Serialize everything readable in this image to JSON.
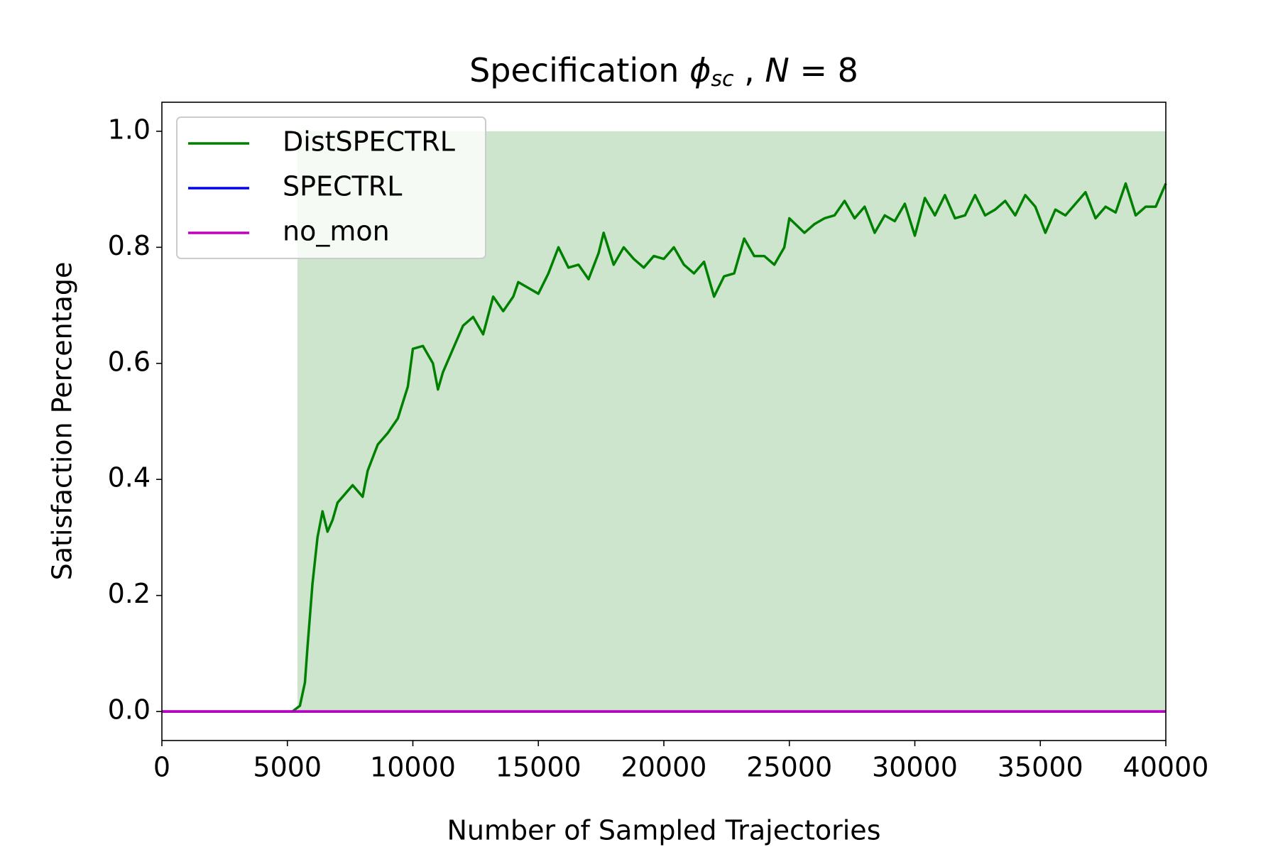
{
  "chart_data": {
    "type": "line",
    "title_parts": [
      "Specification ",
      "ϕ",
      "sc",
      " , ",
      "N",
      " = 8"
    ],
    "x_label": "Number of Sampled Trajectories",
    "y_label": "Satisfaction Percentage",
    "xlim": [
      0,
      40000
    ],
    "xticks": [
      0,
      5000,
      10000,
      15000,
      20000,
      25000,
      30000,
      35000,
      40000
    ],
    "ylim": [
      -0.05,
      1.05
    ],
    "yticks": [
      {
        "value": 0,
        "label": "0.0"
      },
      0.2,
      0.4,
      0.6,
      0.8,
      {
        "value": 1,
        "label": "1.0"
      }
    ],
    "legend": "upper left",
    "band": {
      "color": "#cde5cd",
      "x": [
        5400,
        40000
      ],
      "lower": [
        0,
        0
      ],
      "upper": [
        1,
        1
      ]
    },
    "series": [
      {
        "name": "DistSPECTRL",
        "color": "#008000",
        "x": [
          0,
          5200,
          5500,
          5700,
          5800,
          6000,
          6200,
          6400,
          6600,
          6800,
          7000,
          7400,
          7600,
          8000,
          8200,
          8600,
          9000,
          9400,
          9800,
          10000,
          10400,
          10800,
          11000,
          11200,
          11600,
          12000,
          12400,
          12800,
          13200,
          13600,
          14000,
          14200,
          14600,
          15000,
          15400,
          15800,
          16200,
          16600,
          17000,
          17400,
          17600,
          18000,
          18400,
          18800,
          19200,
          19600,
          20000,
          20400,
          20800,
          21200,
          21600,
          22000,
          22400,
          22800,
          23200,
          23600,
          24000,
          24400,
          24800,
          25000,
          25600,
          26000,
          26400,
          26800,
          27200,
          27600,
          28000,
          28400,
          28800,
          29200,
          29600,
          30000,
          30400,
          30800,
          31200,
          31600,
          32000,
          32400,
          32800,
          33200,
          33600,
          34000,
          34400,
          34800,
          35200,
          35600,
          36000,
          36400,
          36800,
          37200,
          37600,
          38000,
          38400,
          38800,
          39200,
          39600,
          40000
        ],
        "values": [
          0,
          0,
          0.01,
          0.05,
          0.11,
          0.22,
          0.3,
          0.345,
          0.31,
          0.33,
          0.36,
          0.38,
          0.39,
          0.37,
          0.415,
          0.46,
          0.48,
          0.505,
          0.56,
          0.625,
          0.63,
          0.6,
          0.555,
          0.585,
          0.625,
          0.665,
          0.68,
          0.65,
          0.715,
          0.69,
          0.715,
          0.74,
          0.73,
          0.72,
          0.755,
          0.8,
          0.765,
          0.77,
          0.745,
          0.79,
          0.825,
          0.77,
          0.8,
          0.78,
          0.765,
          0.785,
          0.78,
          0.8,
          0.77,
          0.755,
          0.775,
          0.715,
          0.75,
          0.755,
          0.815,
          0.785,
          0.785,
          0.77,
          0.8,
          0.85,
          0.825,
          0.84,
          0.85,
          0.855,
          0.88,
          0.85,
          0.87,
          0.825,
          0.855,
          0.845,
          0.875,
          0.82,
          0.885,
          0.855,
          0.89,
          0.85,
          0.855,
          0.89,
          0.855,
          0.865,
          0.88,
          0.855,
          0.89,
          0.87,
          0.825,
          0.865,
          0.855,
          0.875,
          0.895,
          0.85,
          0.87,
          0.86,
          0.91,
          0.855,
          0.87,
          0.87,
          0.91
        ]
      },
      {
        "name": "SPECTRL",
        "color": "#0000ff",
        "x": [
          0,
          40000
        ],
        "values": [
          0,
          0
        ]
      },
      {
        "name": "no_mon",
        "color": "#bf00bf",
        "x": [
          0,
          40000
        ],
        "values": [
          0,
          0
        ]
      }
    ]
  }
}
